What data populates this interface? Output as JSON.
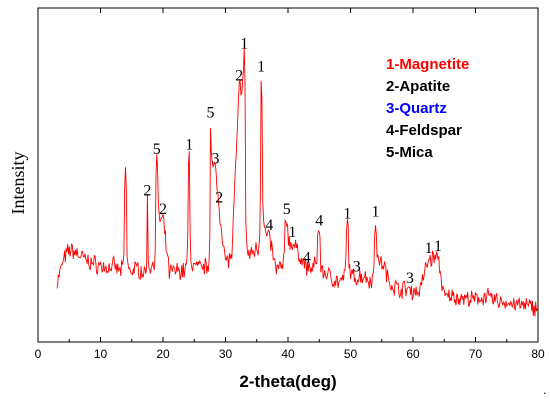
{
  "chart_data": {
    "type": "line",
    "xlabel": "2-theta(deg)",
    "ylabel": "Intensity",
    "xlim": [
      0,
      80
    ],
    "xticks": [
      0,
      10,
      20,
      30,
      40,
      50,
      60,
      70,
      80
    ],
    "y_tick_labels": false,
    "grid": false,
    "series": [
      {
        "color": "#ff0000",
        "x": [
          3.0,
          4.0,
          5.0,
          6.0,
          7.0,
          8.0,
          9.0,
          10.0,
          11.0,
          12.0,
          13.0,
          14.0,
          15.0,
          16.0,
          17.0,
          17.5,
          18.0,
          19.0,
          20.0,
          21.0,
          22.0,
          23.0,
          24.2,
          25.0,
          26.0,
          27.0,
          27.6,
          28.4,
          29.0,
          30.0,
          31.0,
          32.2,
          33.0,
          34.0,
          35.0,
          35.7,
          37.0,
          38.0,
          39.8,
          40.7,
          42.0,
          43.0,
          45.0,
          46.0,
          47.0,
          48.0,
          49.5,
          51.0,
          52.0,
          53.0,
          54.0,
          55.3,
          56.0,
          57.0,
          58.0,
          59.5,
          60.0,
          61.0,
          62.5,
          64.0,
          65.0,
          66.0,
          68.0,
          70.0,
          71.5,
          73.0,
          75.0,
          77.0,
          80.0
        ],
        "y": [
          12,
          22,
          27,
          26,
          24,
          22,
          21,
          20,
          19,
          20,
          18,
          60,
          18,
          19,
          17,
          48,
          20,
          66,
          40,
          17,
          18,
          18,
          68,
          20,
          19,
          20,
          82,
          62,
          45,
          22,
          24,
          98,
          112,
          25,
          28,
          102,
          33,
          19,
          40,
          30,
          24,
          19,
          35,
          17,
          15,
          13,
          38,
          15,
          16,
          14,
          39,
          21,
          14,
          11,
          10,
          10,
          9,
          9,
          23,
          24,
          6,
          7,
          6,
          5,
          7,
          5,
          4,
          3,
          2
        ]
      }
    ],
    "peak_labels": [
      {
        "text": "1",
        "x": 33.0,
        "y": 112
      },
      {
        "text": "1",
        "x": 35.7,
        "y": 102
      },
      {
        "text": "2",
        "x": 32.2,
        "y": 98
      },
      {
        "text": "5",
        "x": 27.6,
        "y": 82
      },
      {
        "text": "5",
        "x": 19.0,
        "y": 66
      },
      {
        "text": "1",
        "x": 24.2,
        "y": 68
      },
      {
        "text": "3",
        "x": 28.4,
        "y": 62
      },
      {
        "text": "2",
        "x": 29.0,
        "y": 45
      },
      {
        "text": "2",
        "x": 17.5,
        "y": 48
      },
      {
        "text": "2",
        "x": 20.0,
        "y": 40
      },
      {
        "text": "4",
        "x": 37.0,
        "y": 33
      },
      {
        "text": "5",
        "x": 39.8,
        "y": 40
      },
      {
        "text": "1",
        "x": 40.7,
        "y": 30
      },
      {
        "text": "4",
        "x": 43.0,
        "y": 19
      },
      {
        "text": "4",
        "x": 45.0,
        "y": 35
      },
      {
        "text": "1",
        "x": 49.5,
        "y": 38
      },
      {
        "text": "3",
        "x": 51.0,
        "y": 15
      },
      {
        "text": "1",
        "x": 54.0,
        "y": 39
      },
      {
        "text": "3",
        "x": 59.5,
        "y": 10
      },
      {
        "text": "1",
        "x": 62.5,
        "y": 23
      },
      {
        "text": "1",
        "x": 64.0,
        "y": 24
      }
    ],
    "legend": {
      "placement": "top-right",
      "entries": [
        {
          "label": "1-Magnetite",
          "color": "#ff0000"
        },
        {
          "label": "2-Apatite",
          "color": "#000000"
        },
        {
          "label": "3-Quartz",
          "color": "#0000ff"
        },
        {
          "label": "4-Feldspar",
          "color": "#000000"
        },
        {
          "label": "5-Mica",
          "color": "#000000"
        }
      ]
    }
  },
  "stray_mark": "."
}
